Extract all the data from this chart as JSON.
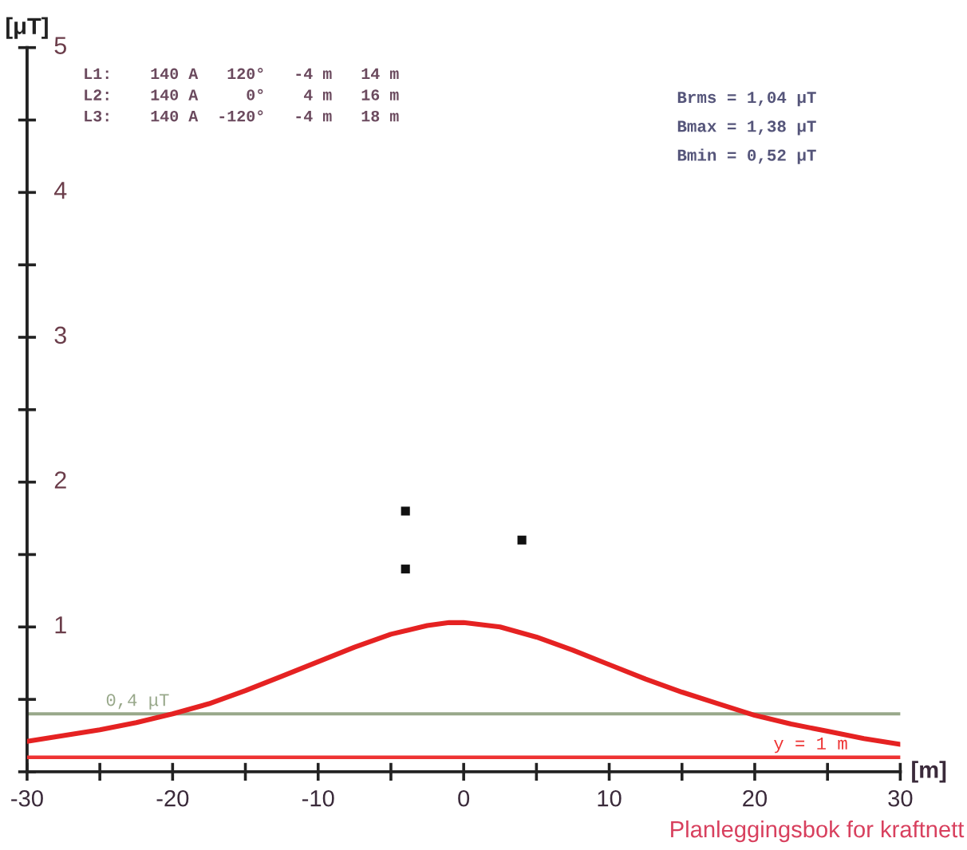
{
  "chart_data": {
    "type": "line",
    "xlabel": "[m]",
    "ylabel": "[μT]",
    "xlim": [
      -30,
      30
    ],
    "ylim": [
      0,
      5
    ],
    "xticks": [
      -30,
      {
        "value": -25,
        "label": null
      },
      -20,
      {
        "value": -15,
        "label": null
      },
      -10,
      {
        "value": -5,
        "label": null
      },
      0,
      {
        "value": 5,
        "label": null
      },
      10,
      {
        "value": 15,
        "label": null
      },
      20,
      {
        "value": 25,
        "label": null
      },
      30
    ],
    "yticks": [
      {
        "value": 0,
        "label": null
      },
      {
        "value": 0.5,
        "label": null
      },
      1,
      {
        "value": 1.5,
        "label": null
      },
      2,
      {
        "value": 2.5,
        "label": null
      },
      3,
      {
        "value": 3.5,
        "label": null
      },
      4,
      {
        "value": 4.5,
        "label": null
      },
      5
    ],
    "series": [
      {
        "color": "#e52222",
        "marker": "none",
        "line_style": "solid",
        "x": [
          -30,
          -27.5,
          -25,
          -22.5,
          -20,
          -17.5,
          -15,
          -12.5,
          -10,
          -7.5,
          -5,
          -2.5,
          -1,
          0,
          2.5,
          5,
          7.5,
          10,
          12.5,
          15,
          17.5,
          20,
          22.5,
          25,
          27.5,
          30
        ],
        "values": [
          0.21,
          0.25,
          0.29,
          0.34,
          0.4,
          0.47,
          0.56,
          0.66,
          0.76,
          0.86,
          0.95,
          1.01,
          1.03,
          1.03,
          1.0,
          0.93,
          0.84,
          0.74,
          0.64,
          0.55,
          0.47,
          0.39,
          0.33,
          0.28,
          0.23,
          0.19
        ]
      },
      {
        "name": "y = 1 m",
        "color": "#ee3333",
        "marker": "none",
        "line_style": "solid",
        "x": [
          -30,
          30
        ],
        "values": [
          0.1,
          0.1
        ]
      },
      {
        "type": "scatter",
        "color": "#111111",
        "marker": "square",
        "x": [
          -4,
          4,
          -4
        ],
        "values": [
          1.4,
          1.6,
          1.8
        ]
      }
    ],
    "ref_lines": [
      {
        "axis": "y",
        "value": 0.4,
        "label": "0,4 μT",
        "color": "#98a88a"
      }
    ],
    "annotations": [
      "L1:    140 A   120°   -4 m   14 m",
      "L2:    140 A     0°    4 m   16 m",
      "L3:    140 A  -120°   -4 m   18 m",
      "Brms = 1,04 μT",
      "Bmax = 1,38 μT",
      "Bmin = 0,52 μT",
      "Planleggingsbok for kraftnett"
    ]
  }
}
